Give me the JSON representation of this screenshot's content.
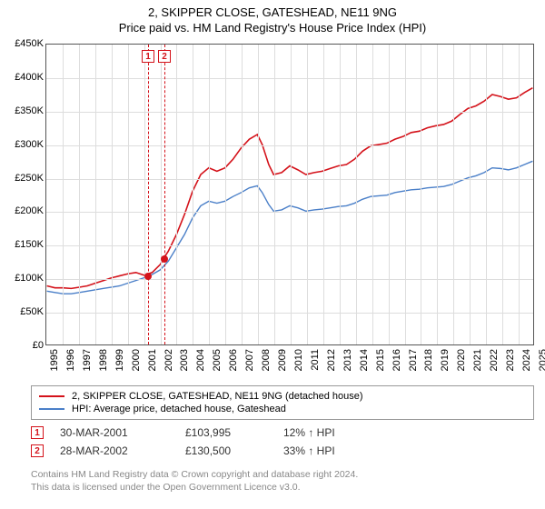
{
  "title": "2, SKIPPER CLOSE, GATESHEAD, NE11 9NG",
  "subtitle": "Price paid vs. HM Land Registry's House Price Index (HPI)",
  "chart": {
    "type": "line",
    "background_color": "#ffffff",
    "grid_color": "#dddddd",
    "border_color": "#555555",
    "y": {
      "min": 0,
      "max": 450000,
      "step": 50000,
      "prefix": "£",
      "suffix": "K",
      "divisor": 1000,
      "label_fontsize": 11
    },
    "x": {
      "min": 1995,
      "max": 2025,
      "step": 1,
      "label_rotation": -90,
      "label_fontsize": 11
    },
    "series": [
      {
        "name": "price_paid",
        "label": "2, SKIPPER CLOSE, GATESHEAD, NE11 9NG (detached house)",
        "color": "#d4121a",
        "line_width": 1.6,
        "points": [
          [
            1995,
            88000
          ],
          [
            1995.5,
            85000
          ],
          [
            1996,
            85000
          ],
          [
            1996.5,
            84000
          ],
          [
            1997,
            86000
          ],
          [
            1997.5,
            88000
          ],
          [
            1998,
            92000
          ],
          [
            1998.5,
            96000
          ],
          [
            1999,
            100000
          ],
          [
            1999.5,
            103000
          ],
          [
            2000,
            106000
          ],
          [
            2000.5,
            108000
          ],
          [
            2001,
            103995
          ],
          [
            2001.5,
            108000
          ],
          [
            2002,
            120000
          ],
          [
            2002.25,
            130500
          ],
          [
            2002.5,
            140000
          ],
          [
            2003,
            165000
          ],
          [
            2003.5,
            195000
          ],
          [
            2004,
            230000
          ],
          [
            2004.5,
            255000
          ],
          [
            2005,
            265000
          ],
          [
            2005.5,
            260000
          ],
          [
            2006,
            265000
          ],
          [
            2006.5,
            278000
          ],
          [
            2007,
            295000
          ],
          [
            2007.5,
            308000
          ],
          [
            2008,
            315000
          ],
          [
            2008.3,
            300000
          ],
          [
            2008.7,
            270000
          ],
          [
            2009,
            255000
          ],
          [
            2009.5,
            258000
          ],
          [
            2010,
            268000
          ],
          [
            2010.5,
            262000
          ],
          [
            2011,
            255000
          ],
          [
            2011.5,
            258000
          ],
          [
            2012,
            260000
          ],
          [
            2012.5,
            264000
          ],
          [
            2013,
            268000
          ],
          [
            2013.5,
            270000
          ],
          [
            2014,
            278000
          ],
          [
            2014.5,
            290000
          ],
          [
            2015,
            298000
          ],
          [
            2015.5,
            300000
          ],
          [
            2016,
            302000
          ],
          [
            2016.5,
            308000
          ],
          [
            2017,
            312000
          ],
          [
            2017.5,
            318000
          ],
          [
            2018,
            320000
          ],
          [
            2018.5,
            325000
          ],
          [
            2019,
            328000
          ],
          [
            2019.5,
            330000
          ],
          [
            2020,
            335000
          ],
          [
            2020.5,
            345000
          ],
          [
            2021,
            354000
          ],
          [
            2021.5,
            358000
          ],
          [
            2022,
            365000
          ],
          [
            2022.5,
            375000
          ],
          [
            2023,
            372000
          ],
          [
            2023.5,
            368000
          ],
          [
            2024,
            370000
          ],
          [
            2024.5,
            378000
          ],
          [
            2025,
            385000
          ]
        ]
      },
      {
        "name": "hpi",
        "label": "HPI: Average price, detached house, Gateshead",
        "color": "#4a7fc8",
        "line_width": 1.4,
        "points": [
          [
            1995,
            80000
          ],
          [
            1995.5,
            78000
          ],
          [
            1996,
            76000
          ],
          [
            1996.5,
            76000
          ],
          [
            1997,
            78000
          ],
          [
            1997.5,
            80000
          ],
          [
            1998,
            82000
          ],
          [
            1998.5,
            84000
          ],
          [
            1999,
            86000
          ],
          [
            1999.5,
            88000
          ],
          [
            2000,
            92000
          ],
          [
            2000.5,
            96000
          ],
          [
            2001,
            100000
          ],
          [
            2001.5,
            105000
          ],
          [
            2002,
            112000
          ],
          [
            2002.5,
            125000
          ],
          [
            2003,
            145000
          ],
          [
            2003.5,
            165000
          ],
          [
            2004,
            190000
          ],
          [
            2004.5,
            208000
          ],
          [
            2005,
            215000
          ],
          [
            2005.5,
            212000
          ],
          [
            2006,
            215000
          ],
          [
            2006.5,
            222000
          ],
          [
            2007,
            228000
          ],
          [
            2007.5,
            235000
          ],
          [
            2008,
            238000
          ],
          [
            2008.3,
            228000
          ],
          [
            2008.7,
            210000
          ],
          [
            2009,
            200000
          ],
          [
            2009.5,
            202000
          ],
          [
            2010,
            208000
          ],
          [
            2010.5,
            205000
          ],
          [
            2011,
            200000
          ],
          [
            2011.5,
            202000
          ],
          [
            2012,
            203000
          ],
          [
            2012.5,
            205000
          ],
          [
            2013,
            207000
          ],
          [
            2013.5,
            208000
          ],
          [
            2014,
            212000
          ],
          [
            2014.5,
            218000
          ],
          [
            2015,
            222000
          ],
          [
            2015.5,
            223000
          ],
          [
            2016,
            224000
          ],
          [
            2016.5,
            228000
          ],
          [
            2017,
            230000
          ],
          [
            2017.5,
            232000
          ],
          [
            2018,
            233000
          ],
          [
            2018.5,
            235000
          ],
          [
            2019,
            236000
          ],
          [
            2019.5,
            237000
          ],
          [
            2020,
            240000
          ],
          [
            2020.5,
            245000
          ],
          [
            2021,
            250000
          ],
          [
            2021.5,
            253000
          ],
          [
            2022,
            258000
          ],
          [
            2022.5,
            265000
          ],
          [
            2023,
            264000
          ],
          [
            2023.5,
            262000
          ],
          [
            2024,
            265000
          ],
          [
            2024.5,
            270000
          ],
          [
            2025,
            275000
          ]
        ]
      }
    ],
    "sale_markers": [
      {
        "num": "1",
        "year": 2001.25,
        "value": 103995,
        "color": "#d4121a"
      },
      {
        "num": "2",
        "year": 2002.25,
        "value": 130500,
        "color": "#d4121a"
      }
    ]
  },
  "legend": {
    "items": [
      {
        "color": "#d4121a",
        "label": "2, SKIPPER CLOSE, GATESHEAD, NE11 9NG (detached house)"
      },
      {
        "color": "#4a7fc8",
        "label": "HPI: Average price, detached house, Gateshead"
      }
    ]
  },
  "sales": [
    {
      "num": "1",
      "color": "#d4121a",
      "date": "30-MAR-2001",
      "price": "£103,995",
      "pct": "12% ↑ HPI"
    },
    {
      "num": "2",
      "color": "#d4121a",
      "date": "28-MAR-2002",
      "price": "£130,500",
      "pct": "33% ↑ HPI"
    }
  ],
  "footer": {
    "line1": "Contains HM Land Registry data © Crown copyright and database right 2024.",
    "line2": "This data is licensed under the Open Government Licence v3.0."
  }
}
